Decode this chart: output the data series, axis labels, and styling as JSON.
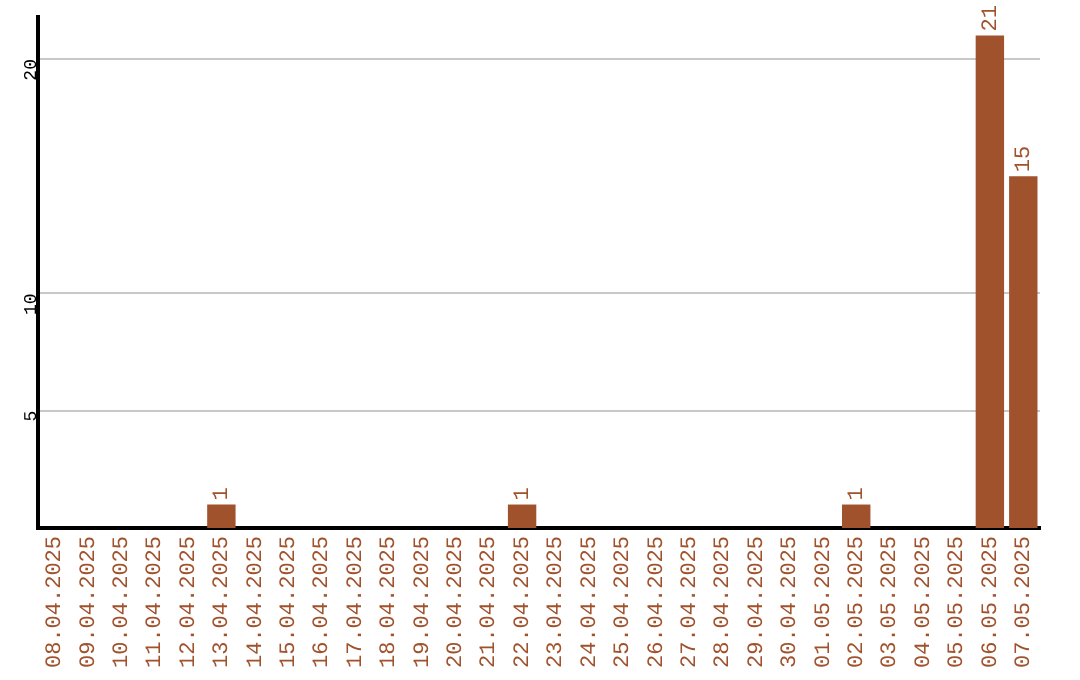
{
  "chart_data": {
    "type": "bar",
    "categories": [
      "08.04.2025",
      "09.04.2025",
      "10.04.2025",
      "11.04.2025",
      "12.04.2025",
      "13.04.2025",
      "14.04.2025",
      "15.04.2025",
      "16.04.2025",
      "17.04.2025",
      "18.04.2025",
      "19.04.2025",
      "20.04.2025",
      "21.04.2025",
      "22.04.2025",
      "23.04.2025",
      "24.04.2025",
      "25.04.2025",
      "26.04.2025",
      "27.04.2025",
      "28.04.2025",
      "29.04.2025",
      "30.04.2025",
      "01.05.2025",
      "02.05.2025",
      "03.05.2025",
      "04.05.2025",
      "05.05.2025",
      "06.05.2025",
      "07.05.2025"
    ],
    "values": [
      0,
      0,
      0,
      0,
      0,
      1,
      0,
      0,
      0,
      0,
      0,
      0,
      0,
      0,
      1,
      0,
      0,
      0,
      0,
      0,
      0,
      0,
      0,
      0,
      1,
      0,
      0,
      0,
      21,
      15
    ],
    "value_labels": [
      null,
      null,
      null,
      null,
      null,
      "1",
      null,
      null,
      null,
      null,
      null,
      null,
      null,
      null,
      "1",
      null,
      null,
      null,
      null,
      null,
      null,
      null,
      null,
      null,
      "1",
      null,
      null,
      null,
      "21",
      "15"
    ],
    "color": "#a0522d",
    "ylim": [
      0,
      21.8
    ],
    "yticks": [
      5,
      10,
      20
    ],
    "grid": "y",
    "legend": false
  }
}
